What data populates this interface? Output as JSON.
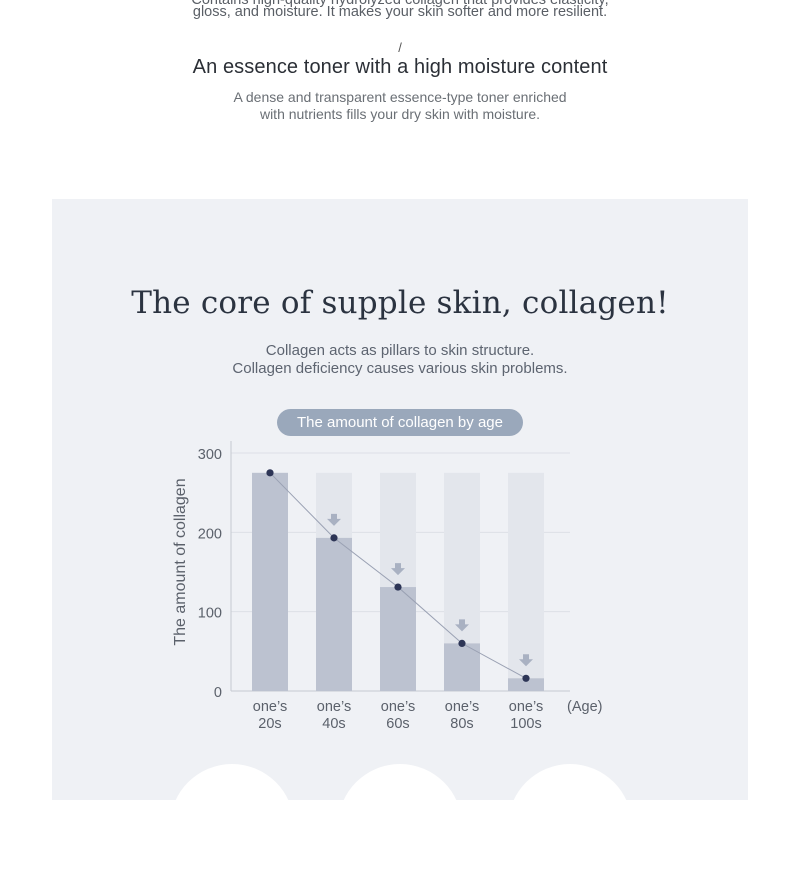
{
  "top": {
    "partial_line1": "Contains high-quality hydrolyzed collagen that provides elasticity,",
    "partial_line2": "gloss, and moisture. It makes your skin softer and more resilient.",
    "slash": "/",
    "title": "An essence toner with a high moisture content",
    "desc_line1": "A dense and transparent essence-type toner enriched",
    "desc_line2": "with nutrients fills your dry skin with moisture."
  },
  "section": {
    "title": "The core of supple skin, collagen!",
    "desc_line1": "Collagen acts as pillars to skin structure.",
    "desc_line2": "Collagen deficiency causes various skin problems.",
    "chart_badge": "The amount of collagen by age"
  },
  "colors": {
    "panel_bg": "#eff1f5",
    "bar_fill": "#bcc2d0",
    "bar_track": "#e3e6ec",
    "point": "#2d3556",
    "line": "#9aa1b3",
    "arrow": "#a9b1c2",
    "badge": "#9aa8bb"
  },
  "chart_data": {
    "type": "bar",
    "title": "The amount of collagen by age",
    "ylabel": "The amount of collagen",
    "xlabel": "(Age)",
    "ylim": [
      0,
      300
    ],
    "yticks": [
      "0",
      "100",
      "200",
      "300"
    ],
    "categories": [
      {
        "line1": "one’s",
        "line2": "20s"
      },
      {
        "line1": "one’s",
        "line2": "40s"
      },
      {
        "line1": "one’s",
        "line2": "60s"
      },
      {
        "line1": "one’s",
        "line2": "80s"
      },
      {
        "line1": "one’s",
        "line2": "100s"
      }
    ],
    "values": [
      275,
      193,
      131,
      60,
      16
    ],
    "track_max": 275,
    "grid": true,
    "overlay": "line connecting bar tops with decrease arrows"
  }
}
